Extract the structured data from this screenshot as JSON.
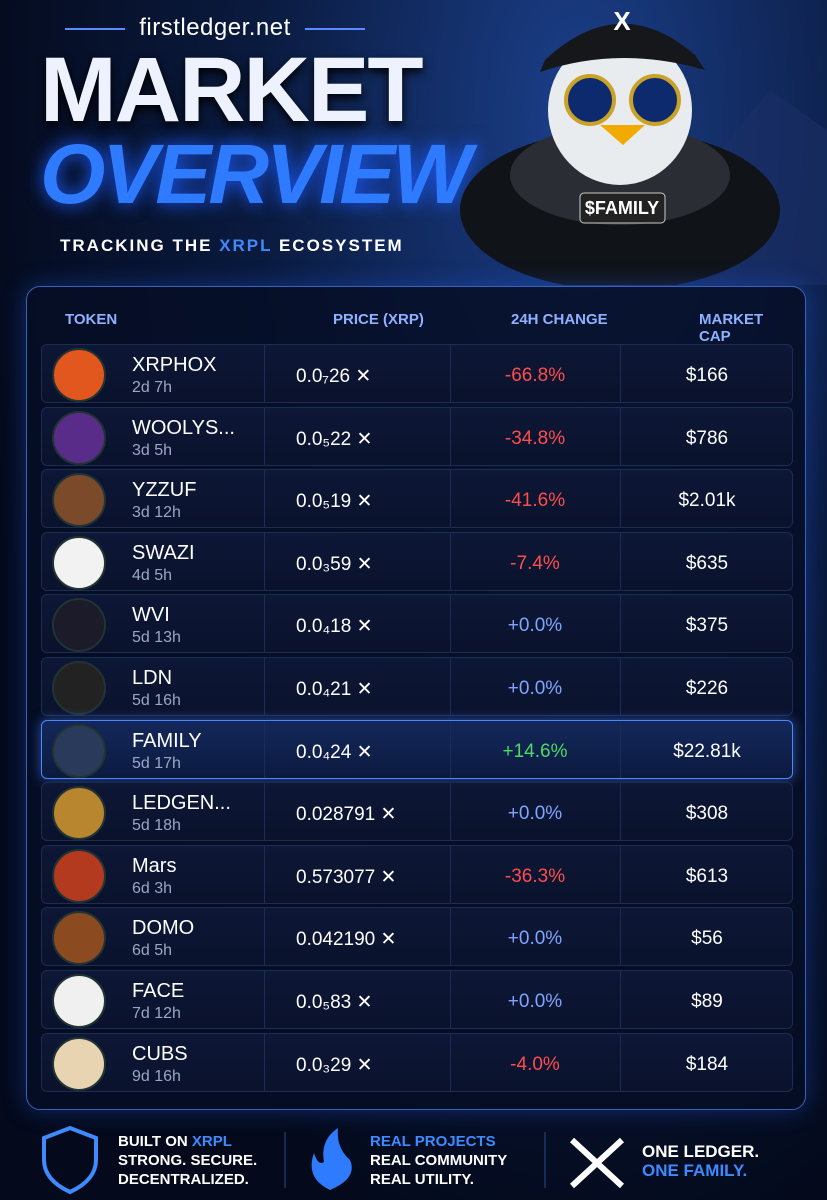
{
  "header": {
    "site": "firstledger.net",
    "title_top": "MARKET",
    "title_bottom": "OVERVIEW",
    "tagline": [
      "TRACKING THE",
      "XRPL",
      "ECOSYSTEM"
    ]
  },
  "hero": {
    "cap_logo": "X",
    "badge": "$FAMILY"
  },
  "table": {
    "columns": [
      "TOKEN",
      "PRICE (XRP)",
      "24H CHANGE",
      "MARKET CAP"
    ],
    "rows": [
      {
        "name": "XRPHOX",
        "age": "2d 7h",
        "price": "0.0₇26",
        "change": "-66.8%",
        "cap": "$166"
      },
      {
        "name": "WOOLYS...",
        "age": "3d 5h",
        "price": "0.0₅22",
        "change": "-34.8%",
        "cap": "$786"
      },
      {
        "name": "YZZUF",
        "age": "3d 12h",
        "price": "0.0₅19",
        "change": "-41.6%",
        "cap": "$2.01k"
      },
      {
        "name": "SWAZI",
        "age": "4d 5h",
        "price": "0.0₃59",
        "change": "-7.4%",
        "cap": "$635"
      },
      {
        "name": "WVI",
        "age": "5d 13h",
        "price": "0.0₄18",
        "change": "+0.0%",
        "cap": "$375"
      },
      {
        "name": "LDN",
        "age": "5d 16h",
        "price": "0.0₄21",
        "change": "+0.0%",
        "cap": "$226"
      },
      {
        "name": "FAMILY",
        "age": "5d 17h",
        "price": "0.0₄24",
        "change": "+14.6%",
        "cap": "$22.81k"
      },
      {
        "name": "LEDGEN...",
        "age": "5d 18h",
        "price": "0.028791",
        "change": "+0.0%",
        "cap": "$308"
      },
      {
        "name": "Mars",
        "age": "6d 3h",
        "price": "0.573077",
        "change": "-36.3%",
        "cap": "$613"
      },
      {
        "name": "DOMO",
        "age": "6d 5h",
        "price": "0.042190",
        "change": "+0.0%",
        "cap": "$56"
      },
      {
        "name": "FACE",
        "age": "7d 12h",
        "price": "0.0₅83",
        "change": "+0.0%",
        "cap": "$89"
      },
      {
        "name": "CUBS",
        "age": "9d 16h",
        "price": "0.0₃29",
        "change": "-4.0%",
        "cap": "$184"
      }
    ]
  },
  "footer": [
    {
      "title": [
        "BUILT ON",
        "XRPL"
      ],
      "lines": [
        "STRONG. SECURE.",
        "DECENTRALIZED."
      ]
    },
    {
      "title": [
        "REAL PROJECTS"
      ],
      "lines": [
        "REAL COMMUNITY",
        "REAL UTILITY."
      ]
    },
    {
      "title": [],
      "lines": [
        "ONE LEDGER.",
        "ONE FAMILY."
      ]
    }
  ]
}
